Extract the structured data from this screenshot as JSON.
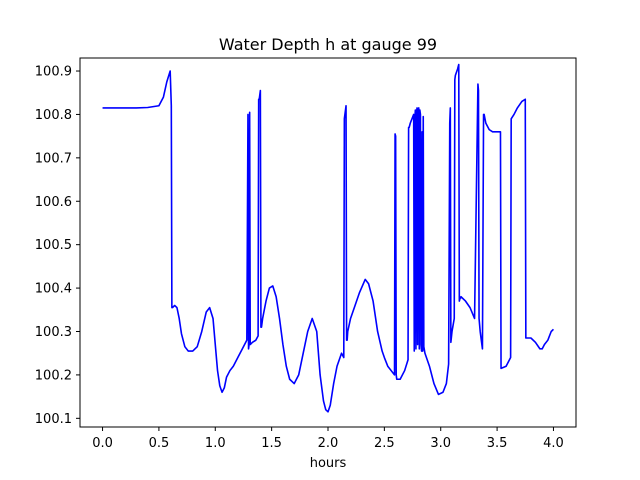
{
  "chart_data": {
    "type": "line",
    "title": "Water Depth h at gauge 99",
    "xlabel": "hours",
    "ylabel": "",
    "xlim": [
      -0.2,
      4.2
    ],
    "ylim": [
      100.08,
      100.93
    ],
    "xticks": [
      {
        "value": 0.0,
        "label": "0.0"
      },
      {
        "value": 0.5,
        "label": "0.5"
      },
      {
        "value": 1.0,
        "label": "1.0"
      },
      {
        "value": 1.5,
        "label": "1.5"
      },
      {
        "value": 2.0,
        "label": "2.0"
      },
      {
        "value": 2.5,
        "label": "2.5"
      },
      {
        "value": 3.0,
        "label": "3.0"
      },
      {
        "value": 3.5,
        "label": "3.5"
      },
      {
        "value": 4.0,
        "label": "4.0"
      }
    ],
    "yticks": [
      {
        "value": 100.1,
        "label": "100.1"
      },
      {
        "value": 100.2,
        "label": "100.2"
      },
      {
        "value": 100.3,
        "label": "100.3"
      },
      {
        "value": 100.4,
        "label": "100.4"
      },
      {
        "value": 100.5,
        "label": "100.5"
      },
      {
        "value": 100.6,
        "label": "100.6"
      },
      {
        "value": 100.7,
        "label": "100.7"
      },
      {
        "value": 100.8,
        "label": "100.8"
      },
      {
        "value": 100.9,
        "label": "100.9"
      }
    ],
    "grid": false,
    "series": [
      {
        "color": "#0000ff",
        "x": [
          0.0,
          0.1,
          0.2,
          0.3,
          0.4,
          0.5,
          0.54,
          0.57,
          0.6,
          0.61,
          0.615,
          0.62,
          0.64,
          0.66,
          0.68,
          0.7,
          0.73,
          0.76,
          0.8,
          0.84,
          0.88,
          0.92,
          0.95,
          0.98,
          1.0,
          1.02,
          1.04,
          1.06,
          1.08,
          1.1,
          1.13,
          1.16,
          1.2,
          1.24,
          1.28,
          1.29,
          1.295,
          1.3,
          1.305,
          1.31,
          1.33,
          1.36,
          1.38,
          1.385,
          1.39,
          1.4,
          1.405,
          1.41,
          1.42,
          1.45,
          1.48,
          1.51,
          1.54,
          1.57,
          1.6,
          1.63,
          1.66,
          1.7,
          1.74,
          1.78,
          1.82,
          1.86,
          1.9,
          1.93,
          1.96,
          1.98,
          2.0,
          2.02,
          2.05,
          2.08,
          2.12,
          2.14,
          2.145,
          2.16,
          2.165,
          2.17,
          2.175,
          2.2,
          2.24,
          2.28,
          2.33,
          2.36,
          2.4,
          2.44,
          2.48,
          2.5,
          2.53,
          2.56,
          2.59,
          2.595,
          2.6,
          2.605,
          2.61,
          2.64,
          2.68,
          2.71,
          2.715,
          2.72,
          2.73,
          2.76,
          2.765,
          2.77,
          2.775,
          2.78,
          2.785,
          2.79,
          2.795,
          2.8,
          2.805,
          2.81,
          2.815,
          2.82,
          2.825,
          2.83,
          2.835,
          2.84,
          2.845,
          2.85,
          2.86,
          2.9,
          2.94,
          2.98,
          3.02,
          3.05,
          3.07,
          3.08,
          3.085,
          3.09,
          3.1,
          3.12,
          3.125,
          3.13,
          3.15,
          3.16,
          3.165,
          3.17,
          3.18,
          3.22,
          3.26,
          3.3,
          3.33,
          3.335,
          3.34,
          3.35,
          3.37,
          3.38,
          3.385,
          3.4,
          3.43,
          3.46,
          3.5,
          3.53,
          3.535,
          3.58,
          3.62,
          3.625,
          3.65,
          3.68,
          3.72,
          3.75,
          3.755,
          3.76,
          3.8,
          3.84,
          3.88,
          3.9,
          3.92,
          3.95,
          3.98,
          4.0
        ],
        "y": [
          100.815,
          100.815,
          100.815,
          100.815,
          100.816,
          100.82,
          100.84,
          100.875,
          100.9,
          100.82,
          100.355,
          100.355,
          100.36,
          100.355,
          100.33,
          100.295,
          100.265,
          100.255,
          100.255,
          100.265,
          100.3,
          100.345,
          100.355,
          100.33,
          100.27,
          100.21,
          100.175,
          100.16,
          100.17,
          100.195,
          100.21,
          100.22,
          100.24,
          100.26,
          100.28,
          100.8,
          100.26,
          100.27,
          100.805,
          100.27,
          100.275,
          100.28,
          100.29,
          100.835,
          100.835,
          100.855,
          100.31,
          100.31,
          100.33,
          100.37,
          100.4,
          100.405,
          100.38,
          100.33,
          100.27,
          100.22,
          100.19,
          100.18,
          100.2,
          100.25,
          100.3,
          100.33,
          100.3,
          100.2,
          100.14,
          100.12,
          100.115,
          100.13,
          100.18,
          100.22,
          100.25,
          100.24,
          100.79,
          100.82,
          100.28,
          100.28,
          100.3,
          100.33,
          100.36,
          100.39,
          100.42,
          100.41,
          100.37,
          100.3,
          100.255,
          100.24,
          100.22,
          100.21,
          100.2,
          100.755,
          100.75,
          100.2,
          100.19,
          100.19,
          100.21,
          100.235,
          100.77,
          100.77,
          100.78,
          100.8,
          100.255,
          100.79,
          100.81,
          100.26,
          100.805,
          100.815,
          100.27,
          100.81,
          100.815,
          100.26,
          100.81,
          100.8,
          100.27,
          100.255,
          100.76,
          100.255,
          100.795,
          100.265,
          100.25,
          100.22,
          100.18,
          100.155,
          100.16,
          100.18,
          100.225,
          100.78,
          100.815,
          100.275,
          100.3,
          100.33,
          100.88,
          100.89,
          100.905,
          100.915,
          100.37,
          100.375,
          100.38,
          100.37,
          100.355,
          100.33,
          100.87,
          100.855,
          100.33,
          100.3,
          100.26,
          100.8,
          100.8,
          100.78,
          100.765,
          100.76,
          100.76,
          100.76,
          100.215,
          100.22,
          100.24,
          100.79,
          100.8,
          100.815,
          100.83,
          100.835,
          100.285,
          100.285,
          100.285,
          100.275,
          100.26,
          100.26,
          100.27,
          100.28,
          100.3,
          100.305
        ]
      }
    ]
  }
}
